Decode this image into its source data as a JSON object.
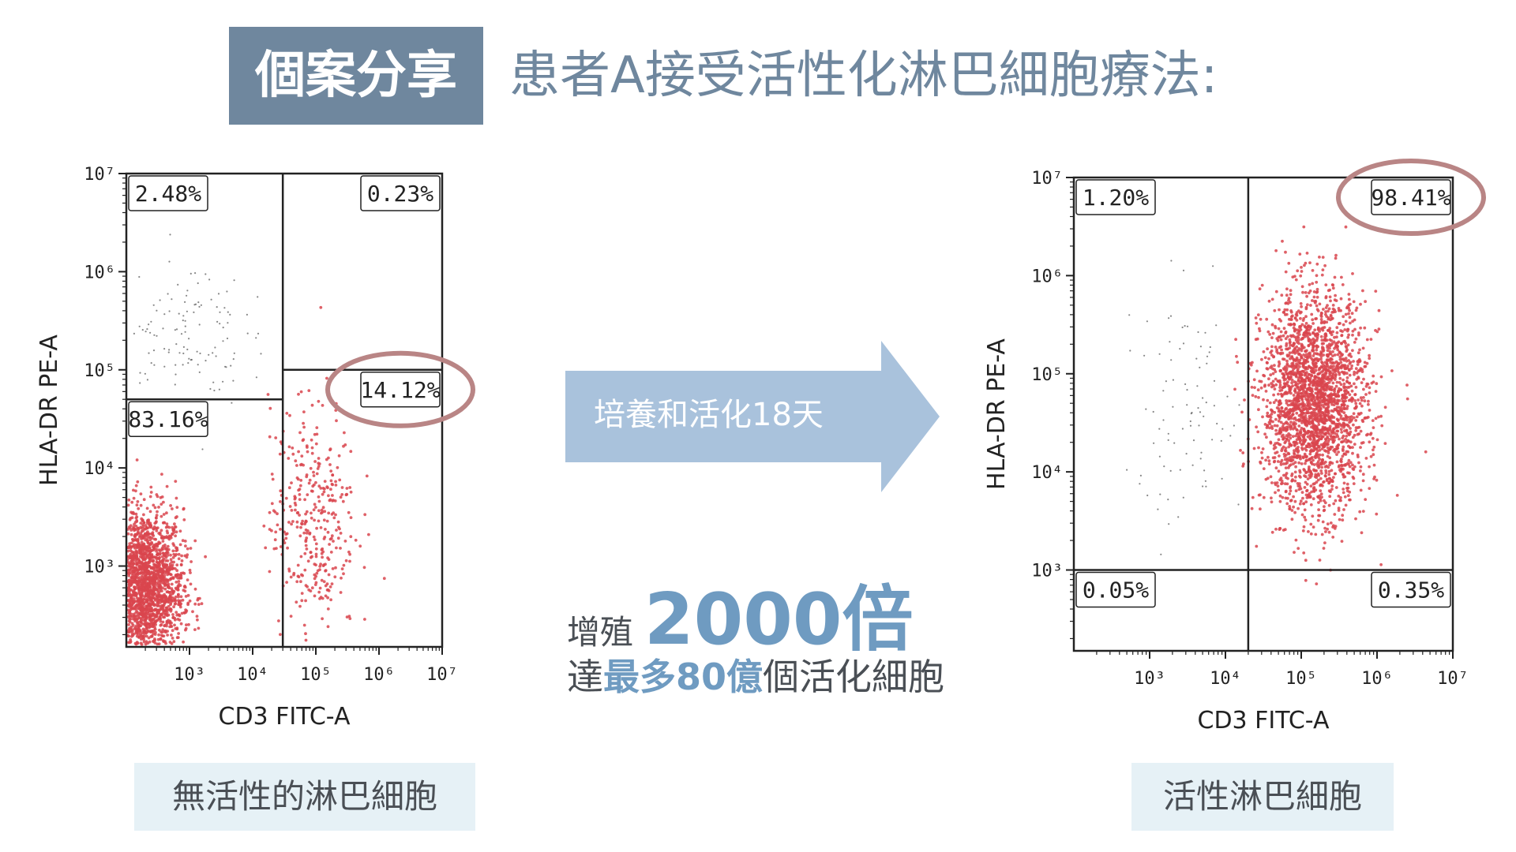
{
  "header": {
    "badge": "個案分享",
    "title": "患者A接受活性化淋巴細胞療法:"
  },
  "arrow": {
    "label": "培養和活化18天",
    "color": "#a9c2dc"
  },
  "growth": {
    "prefix": "增殖",
    "fold": "2000倍",
    "line2_prefix": "達",
    "line2_highlight": "最多80億",
    "line2_suffix": "個活化細胞"
  },
  "captions": {
    "left": "無活性的淋巴細胞",
    "right": "活性淋巴細胞"
  },
  "colors": {
    "theme": "#6f879e",
    "accent": "#6f9bc1",
    "cells": "#d9454d",
    "highlight_ring": "#b98585",
    "caption_bg": "#e6f1f6"
  },
  "chart_data": [
    {
      "type": "scatter",
      "xlabel": "CD3 FITC-A",
      "ylabel": "HLA-DR PE-A",
      "x_scale": "log",
      "y_scale": "log",
      "xlim": [
        100,
        10000000
      ],
      "ylim": [
        150,
        10000000
      ],
      "x_ticks": [
        "10³",
        "10⁴",
        "10⁵",
        "10⁶",
        "10⁷"
      ],
      "y_ticks": [
        "10³",
        "10⁴",
        "10⁵",
        "10⁶",
        "10⁷"
      ],
      "gates": {
        "x": 30000,
        "y_left": 50000,
        "y_right": 100000
      },
      "quadrants": {
        "upper_left": "2.48%",
        "upper_right": "0.23%",
        "lower_left": "83.16%",
        "lower_right": "14.12%"
      },
      "highlighted_quadrant": "lower_right",
      "populations": [
        {
          "x_center": 200,
          "y_center": 600,
          "x_spread": 2,
          "y_spread": 2.5,
          "share": 0.83,
          "color": "red"
        },
        {
          "x_center": 90000,
          "y_center": 3000,
          "x_spread": 2.2,
          "y_spread": 4,
          "share": 0.14,
          "color": "red"
        },
        {
          "x_center": 800,
          "y_center": 250000,
          "x_spread": 3,
          "y_spread": 2.5,
          "share": 0.025,
          "color": "grey"
        }
      ]
    },
    {
      "type": "scatter",
      "xlabel": "CD3 FITC-A",
      "ylabel": "HLA-DR PE-A",
      "x_scale": "log",
      "y_scale": "log",
      "xlim": [
        100,
        10000000
      ],
      "ylim": [
        150,
        10000000
      ],
      "x_ticks": [
        "10³",
        "10⁴",
        "10⁵",
        "10⁶",
        "10⁷"
      ],
      "y_ticks": [
        "10³",
        "10⁴",
        "10⁵",
        "10⁶",
        "10⁷"
      ],
      "gates": {
        "x": 20000,
        "y_left": 1000,
        "y_right": 1000
      },
      "quadrants": {
        "upper_left": "1.20%",
        "upper_right": "98.41%",
        "lower_left": "0.05%",
        "lower_right": "0.35%"
      },
      "highlighted_quadrant": "upper_right",
      "populations": [
        {
          "x_center": 150000,
          "y_center": 50000,
          "x_spread": 2.2,
          "y_spread": 3.5,
          "share": 0.98,
          "color": "red"
        },
        {
          "x_center": 3000,
          "y_center": 40000,
          "x_spread": 2.5,
          "y_spread": 4,
          "share": 0.012,
          "color": "grey"
        }
      ]
    }
  ]
}
